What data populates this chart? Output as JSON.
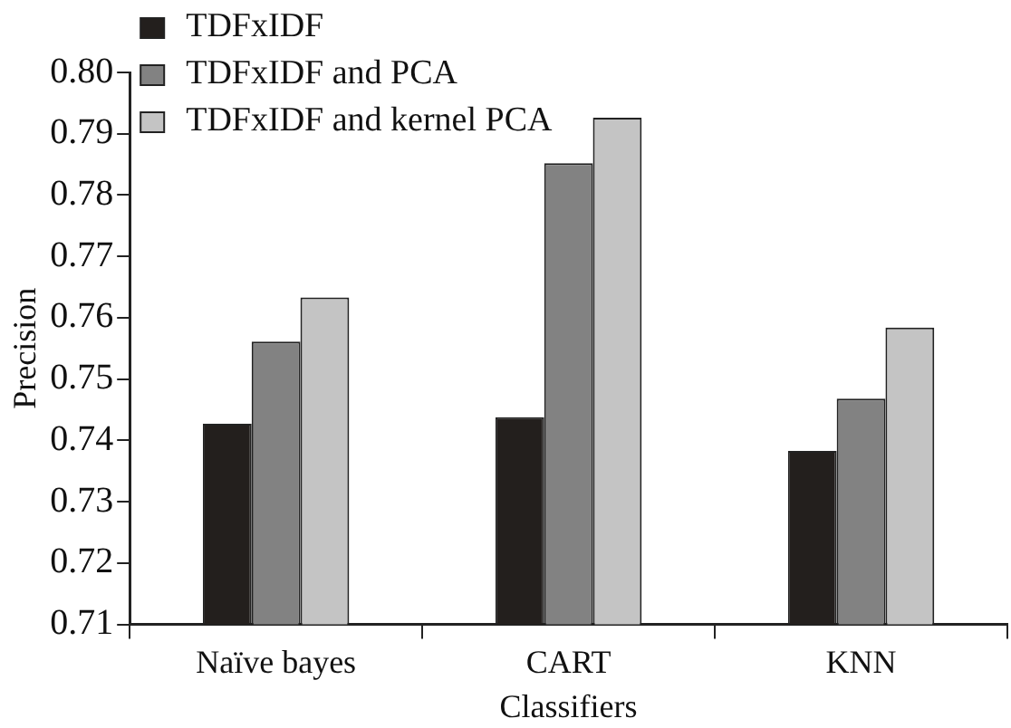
{
  "chart_data": {
    "type": "bar",
    "xlabel": "Classifiers",
    "ylabel": "Precision",
    "categories": [
      "Naïve bayes",
      "CART",
      "KNN"
    ],
    "series": [
      {
        "name": "TDFxIDF",
        "color": "#231f1d",
        "values": [
          0.7427,
          0.7438,
          0.7383
        ]
      },
      {
        "name": "TDFxIDF and PCA",
        "color": "#828282",
        "values": [
          0.7561,
          0.7852,
          0.7468
        ]
      },
      {
        "name": "TDFxIDF and kernel PCA",
        "color": "#c4c4c4",
        "values": [
          0.7633,
          0.7926,
          0.7584
        ]
      }
    ],
    "ylim": [
      0.71,
      0.8
    ],
    "yticks": [
      0.71,
      0.72,
      0.73,
      0.74,
      0.75,
      0.76,
      0.77,
      0.78,
      0.79,
      {
        "value": 0.8,
        "label": "0.80"
      }
    ],
    "grid": false,
    "legend": "top left"
  }
}
